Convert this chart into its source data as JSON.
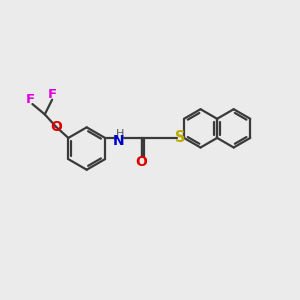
{
  "bg_color": "#ebebeb",
  "bond_color": "#3a3a3a",
  "atom_colors": {
    "F": "#e000e0",
    "O": "#dd0000",
    "N": "#0000cc",
    "H": "#555555",
    "S": "#bbaa00",
    "C": "#3a3a3a"
  },
  "line_width": 1.6,
  "font_size": 9.5,
  "figsize": [
    3.0,
    3.0
  ],
  "dpi": 100
}
